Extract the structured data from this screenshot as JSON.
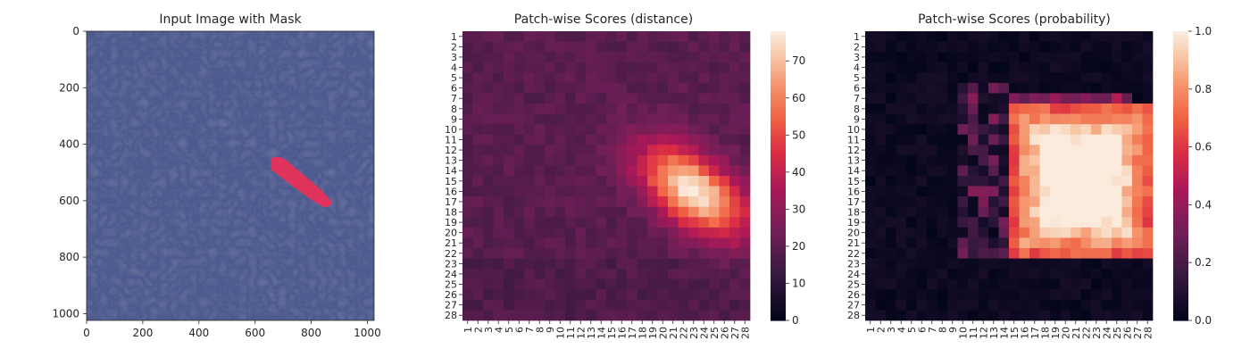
{
  "chart_data": [
    {
      "type": "image",
      "title": "Input Image with Mask",
      "x_ticks": [
        0,
        200,
        400,
        600,
        800,
        1000
      ],
      "y_ticks": [
        0,
        200,
        400,
        600,
        800,
        1000
      ],
      "xlim": [
        0,
        1024
      ],
      "ylim": [
        1024,
        0
      ],
      "image_description": "blue-tinted leather texture",
      "mask_color": "#e8305a",
      "mask_region_pixels": {
        "start": [
          650,
          445
        ],
        "end": [
          870,
          620
        ]
      }
    },
    {
      "type": "heatmap",
      "title": "Patch-wise Scores (distance)",
      "x_labels": [
        "1",
        "2",
        "3",
        "4",
        "5",
        "6",
        "7",
        "8",
        "9",
        "10",
        "11",
        "12",
        "13",
        "14",
        "15",
        "16",
        "17",
        "18",
        "19",
        "20",
        "21",
        "22",
        "23",
        "24",
        "25",
        "26",
        "27",
        "28"
      ],
      "y_labels": [
        "1",
        "2",
        "3",
        "4",
        "5",
        "6",
        "7",
        "8",
        "9",
        "10",
        "11",
        "12",
        "13",
        "14",
        "15",
        "16",
        "17",
        "18",
        "19",
        "20",
        "21",
        "22",
        "23",
        "24",
        "25",
        "26",
        "27",
        "28"
      ],
      "colorbar_ticks": [
        0,
        10,
        20,
        30,
        40,
        50,
        60,
        70
      ],
      "vmin": 0,
      "vmax": 78,
      "colormap": "rocket",
      "baseline_value": 19,
      "hotspot": {
        "center_row": 16,
        "center_col": 23,
        "peak_value": 78
      },
      "description": "Scores are roughly 15-22 everywhere except an elongated hotspot from rows ~11-22 and columns ~18-28, peaking near 78 around row 16, column 23."
    },
    {
      "type": "heatmap",
      "title": "Patch-wise Scores (probability)",
      "x_labels": [
        "1",
        "2",
        "3",
        "4",
        "5",
        "6",
        "7",
        "8",
        "9",
        "10",
        "11",
        "12",
        "13",
        "14",
        "15",
        "16",
        "17",
        "18",
        "19",
        "20",
        "21",
        "22",
        "23",
        "24",
        "25",
        "26",
        "27",
        "28"
      ],
      "y_labels": [
        "1",
        "2",
        "3",
        "4",
        "5",
        "6",
        "7",
        "8",
        "9",
        "10",
        "11",
        "12",
        "13",
        "14",
        "15",
        "16",
        "17",
        "18",
        "19",
        "20",
        "21",
        "22",
        "23",
        "24",
        "25",
        "26",
        "27",
        "28"
      ],
      "colorbar_ticks": [
        "0.0",
        "0.2",
        "0.4",
        "0.6",
        "0.8",
        "1.0"
      ],
      "vmin": 0,
      "vmax": 1,
      "colormap": "rocket",
      "hotspot": {
        "row_range": [
          7,
          22
        ],
        "col_range": [
          15,
          28
        ],
        "peak_value": 1.0
      },
      "description": "Near 0 everywhere except a large block of high probability (0.6-1.0) spanning rows ~8-22 and columns ~15-28, with a faint fringe (0.1-0.4) to its left."
    }
  ]
}
